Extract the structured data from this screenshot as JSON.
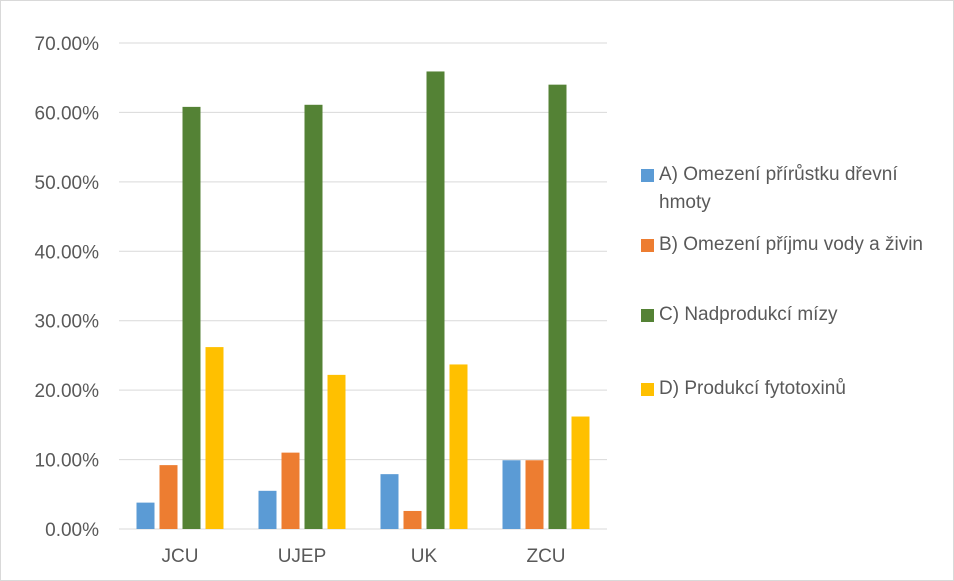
{
  "chart_data": {
    "type": "bar",
    "categories": [
      "JCU",
      "UJEP",
      "UK",
      "ZCU"
    ],
    "series": [
      {
        "name": "A) Omezení přírůstku dřevní hmoty",
        "color": "#5b9bd5",
        "values": [
          3.8,
          5.5,
          7.9,
          9.9
        ]
      },
      {
        "name": "B) Omezení příjmu vody a živin",
        "color": "#ed7d31",
        "values": [
          9.2,
          11.0,
          2.6,
          9.9
        ]
      },
      {
        "name": "C) Nadprodukcí mízy",
        "color": "#548235",
        "values": [
          60.8,
          61.1,
          65.9,
          64.0
        ]
      },
      {
        "name": "D) Produkcí fytotoxinů",
        "color": "#ffc000",
        "values": [
          26.2,
          22.2,
          23.7,
          16.2
        ]
      }
    ],
    "yticks": [
      "0.00%",
      "10.00%",
      "20.00%",
      "30.00%",
      "40.00%",
      "50.00%",
      "60.00%",
      "70.00%"
    ],
    "ylim": [
      0,
      70
    ],
    "grid": true,
    "legend_position": "right"
  }
}
